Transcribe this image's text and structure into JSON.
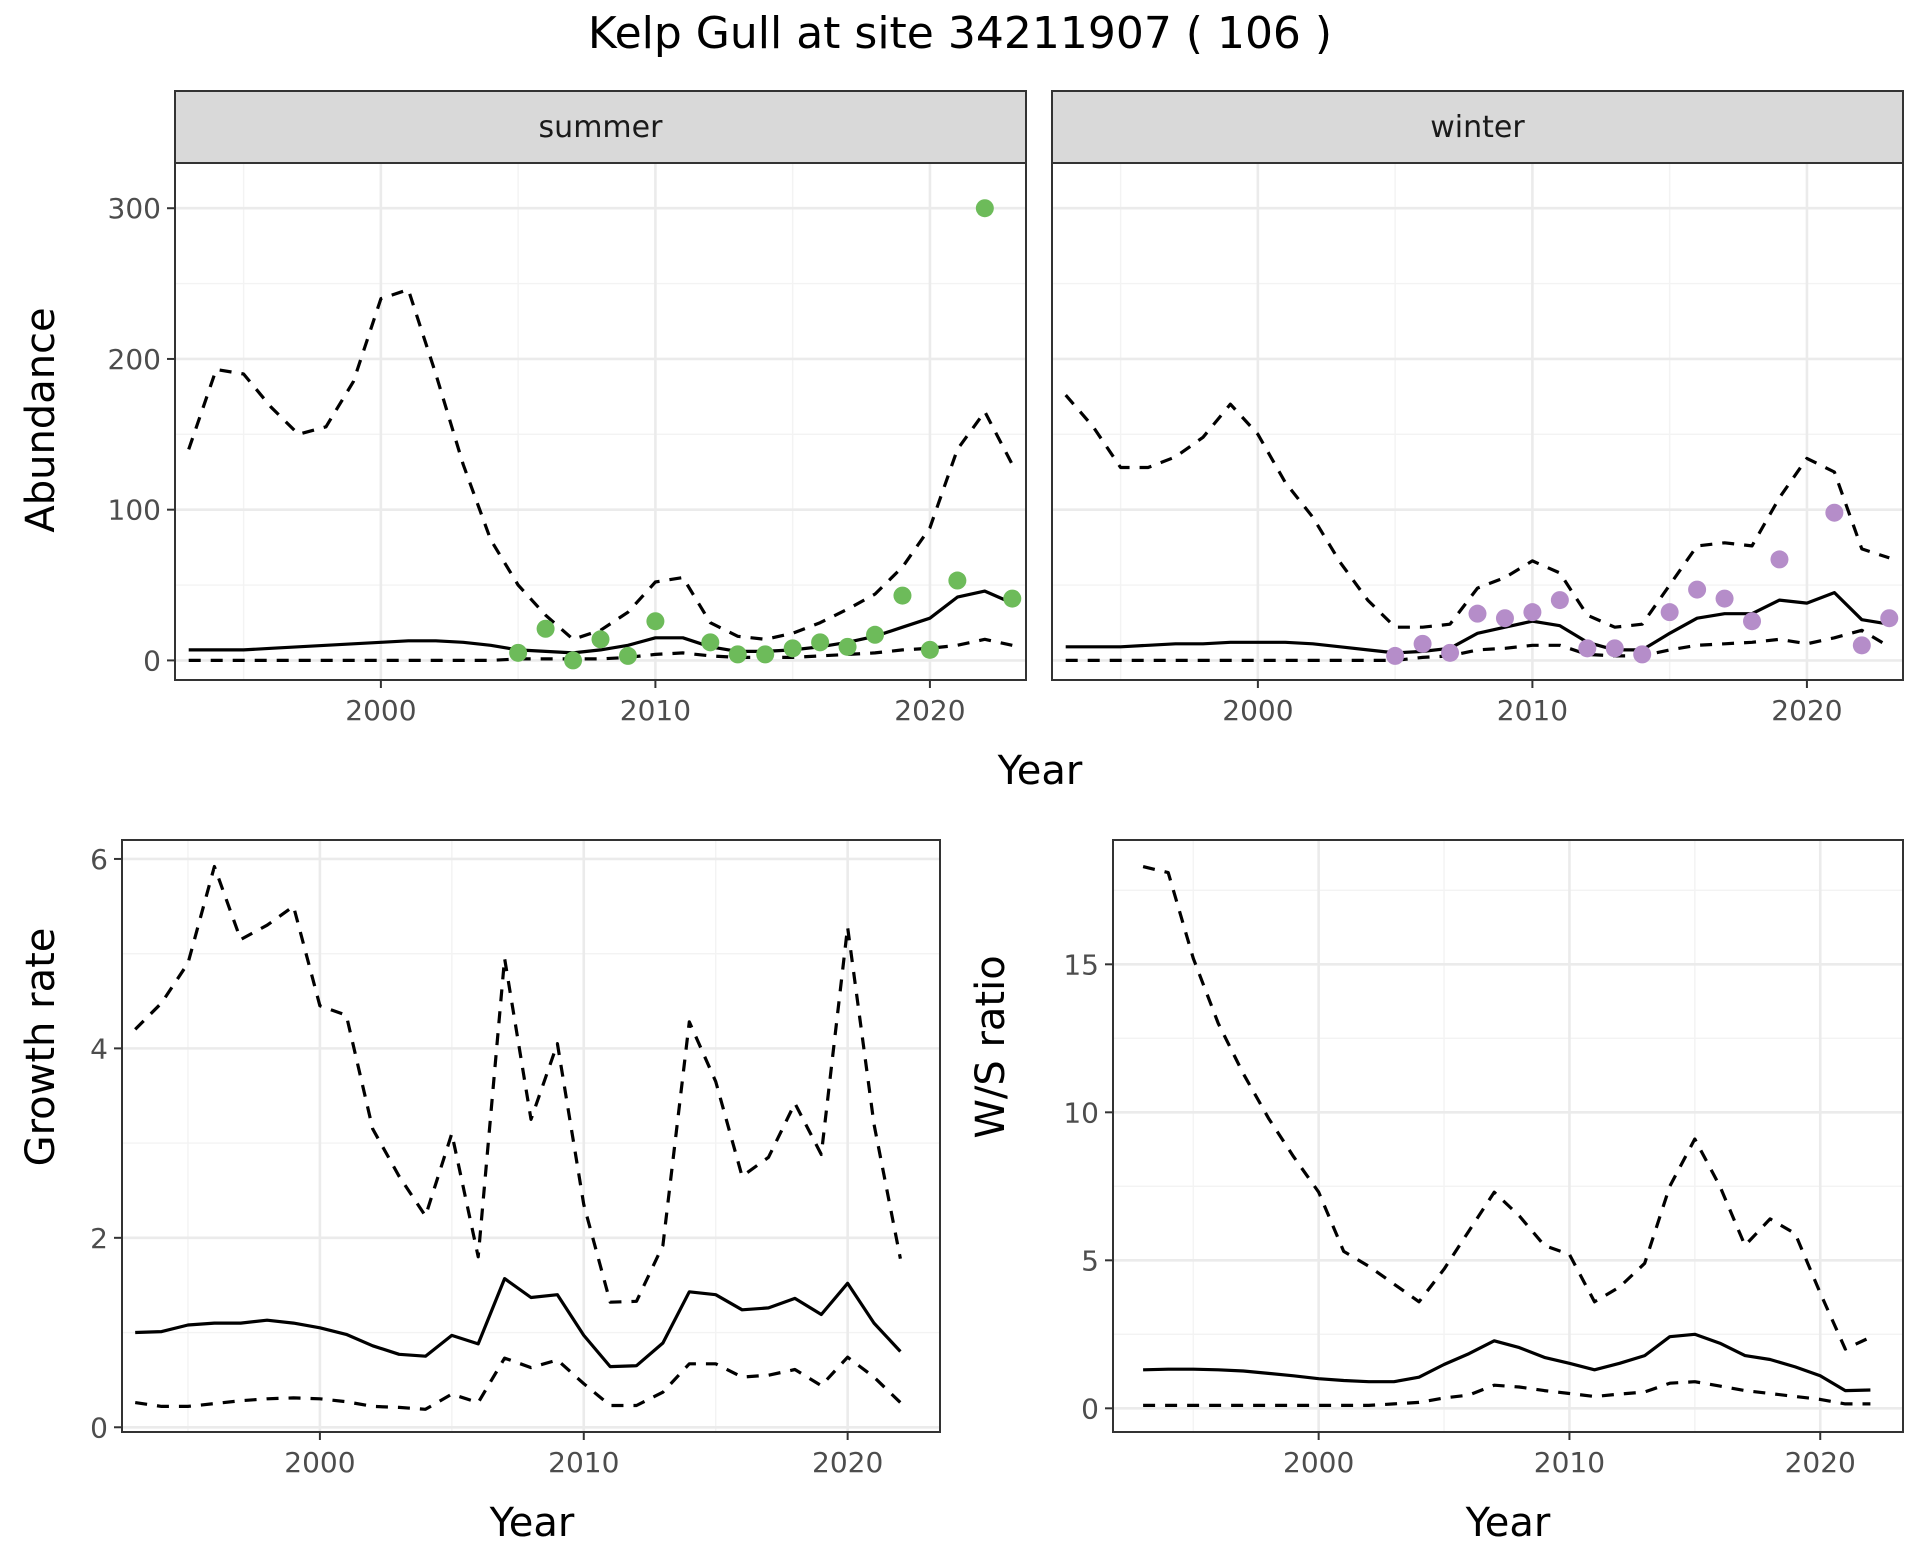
{
  "title": "Kelp Gull at site 34211907 ( 106 )",
  "colors": {
    "summer_points": "#6dbb5a",
    "winter_points": "#b58dc9",
    "strip_fill": "#d9d9d9"
  },
  "chart_data": [
    {
      "type": "line",
      "name": "abundance",
      "xlabel": "Year",
      "ylabel": "Abundance",
      "xlim": [
        1992.5,
        2023.5
      ],
      "ylim": [
        -13,
        330
      ],
      "x_ticks": [
        2000,
        2010,
        2020
      ],
      "y_ticks": [
        0,
        100,
        200,
        300
      ],
      "grid": true,
      "legend": "none",
      "panels": [
        {
          "strip": "summer",
          "x": [
            1993,
            1994,
            1995,
            1996,
            1997,
            1998,
            1999,
            2000,
            2001,
            2002,
            2003,
            2004,
            2005,
            2006,
            2007,
            2008,
            2009,
            2010,
            2011,
            2012,
            2013,
            2014,
            2015,
            2016,
            2017,
            2018,
            2019,
            2020,
            2021,
            2022,
            2023
          ],
          "estimate": [
            7,
            7,
            7,
            8,
            9,
            10,
            11,
            12,
            13,
            13,
            12,
            10,
            7,
            6,
            5,
            7,
            10,
            15,
            15,
            9,
            6,
            6,
            7,
            9,
            12,
            16,
            22,
            28,
            42,
            46,
            38
          ],
          "upper": [
            140,
            193,
            190,
            168,
            150,
            155,
            185,
            240,
            246,
            190,
            130,
            80,
            50,
            30,
            14,
            20,
            32,
            52,
            55,
            25,
            16,
            14,
            18,
            25,
            34,
            44,
            62,
            88,
            140,
            165,
            130
          ],
          "lower": [
            0,
            0,
            0,
            0,
            0,
            0,
            0,
            0,
            0,
            0,
            0,
            0,
            1,
            1,
            1,
            1,
            2,
            4,
            5,
            3,
            2,
            2,
            2,
            3,
            4,
            5,
            7,
            8,
            10,
            14,
            10
          ],
          "points": {
            "x": [
              2005,
              2006,
              2007,
              2008,
              2009,
              2010,
              2012,
              2013,
              2014,
              2015,
              2016,
              2017,
              2018,
              2019,
              2020,
              2021,
              2022,
              2023
            ],
            "y": [
              5,
              21,
              0,
              14,
              3,
              26,
              12,
              4,
              4,
              8,
              12,
              9,
              17,
              43,
              7,
              53,
              300,
              41
            ]
          }
        },
        {
          "strip": "winter",
          "x": [
            1993,
            1994,
            1995,
            1996,
            1997,
            1998,
            1999,
            2000,
            2001,
            2002,
            2003,
            2004,
            2005,
            2006,
            2007,
            2008,
            2009,
            2010,
            2011,
            2012,
            2013,
            2014,
            2015,
            2016,
            2017,
            2018,
            2019,
            2020,
            2021,
            2022,
            2023
          ],
          "estimate": [
            9,
            9,
            9,
            10,
            11,
            11,
            12,
            12,
            12,
            11,
            9,
            7,
            5,
            6,
            8,
            18,
            22,
            26,
            23,
            12,
            7,
            7,
            18,
            28,
            31,
            31,
            40,
            38,
            45,
            27,
            24
          ],
          "upper": [
            176,
            155,
            128,
            128,
            135,
            148,
            170,
            150,
            118,
            95,
            65,
            40,
            22,
            22,
            24,
            48,
            55,
            66,
            58,
            30,
            22,
            24,
            50,
            76,
            78,
            76,
            108,
            134,
            125,
            74,
            68
          ],
          "lower": [
            0,
            0,
            0,
            0,
            0,
            0,
            0,
            0,
            0,
            0,
            0,
            0,
            0,
            2,
            3,
            7,
            8,
            10,
            10,
            4,
            3,
            3,
            7,
            10,
            11,
            12,
            14,
            11,
            15,
            20,
            9
          ],
          "points": {
            "x": [
              2005,
              2006,
              2007,
              2008,
              2009,
              2010,
              2011,
              2012,
              2013,
              2014,
              2015,
              2016,
              2017,
              2018,
              2019,
              2021,
              2022,
              2023
            ],
            "y": [
              3,
              11,
              5,
              31,
              28,
              32,
              40,
              8,
              8,
              4,
              32,
              47,
              41,
              26,
              67,
              98,
              10,
              28
            ]
          }
        }
      ]
    },
    {
      "type": "line",
      "name": "growth_rate",
      "xlabel": "Year",
      "ylabel": "Growth rate",
      "xlim": [
        1992.5,
        2023.5
      ],
      "ylim": [
        -0.05,
        6.2
      ],
      "x_ticks": [
        2000,
        2010,
        2020
      ],
      "y_ticks": [
        0,
        2,
        4,
        6
      ],
      "grid": true,
      "legend": "none",
      "x": [
        1993,
        1994,
        1995,
        1996,
        1997,
        1998,
        1999,
        2000,
        2001,
        2002,
        2003,
        2004,
        2005,
        2006,
        2007,
        2008,
        2009,
        2010,
        2011,
        2012,
        2013,
        2014,
        2015,
        2016,
        2017,
        2018,
        2019,
        2020,
        2021,
        2022
      ],
      "estimate": [
        1.0,
        1.01,
        1.08,
        1.1,
        1.1,
        1.13,
        1.1,
        1.05,
        0.98,
        0.86,
        0.77,
        0.75,
        0.97,
        0.88,
        1.57,
        1.37,
        1.4,
        0.97,
        0.64,
        0.65,
        0.89,
        1.43,
        1.4,
        1.24,
        1.26,
        1.36,
        1.19,
        1.52,
        1.1,
        0.8
      ],
      "upper": [
        4.2,
        4.48,
        4.9,
        5.92,
        5.15,
        5.3,
        5.5,
        4.45,
        4.35,
        3.15,
        2.65,
        2.23,
        3.1,
        1.8,
        4.95,
        3.25,
        4.05,
        2.35,
        1.32,
        1.33,
        1.92,
        4.28,
        3.65,
        2.65,
        2.85,
        3.42,
        2.88,
        5.28,
        3.2,
        1.78
      ],
      "lower": [
        0.26,
        0.22,
        0.22,
        0.25,
        0.28,
        0.3,
        0.31,
        0.3,
        0.27,
        0.22,
        0.21,
        0.19,
        0.35,
        0.26,
        0.73,
        0.63,
        0.71,
        0.46,
        0.23,
        0.23,
        0.37,
        0.67,
        0.67,
        0.53,
        0.55,
        0.61,
        0.44,
        0.74,
        0.53,
        0.26
      ]
    },
    {
      "type": "line",
      "name": "ws_ratio",
      "xlabel": "Year",
      "ylabel": "W/S ratio",
      "xlim": [
        1991.8,
        2023.3
      ],
      "ylim": [
        -0.8,
        19.2
      ],
      "x_ticks": [
        2000,
        2010,
        2020
      ],
      "y_ticks": [
        0,
        5,
        10,
        15
      ],
      "grid": true,
      "legend": "none",
      "x": [
        1993,
        1994,
        1995,
        1996,
        1997,
        1998,
        1999,
        2000,
        2001,
        2002,
        2003,
        2004,
        2005,
        2006,
        2007,
        2008,
        2009,
        2010,
        2011,
        2012,
        2013,
        2014,
        2015,
        2016,
        2017,
        2018,
        2019,
        2020,
        2021,
        2022
      ],
      "estimate": [
        1.3,
        1.32,
        1.32,
        1.3,
        1.26,
        1.18,
        1.1,
        1.0,
        0.94,
        0.9,
        0.9,
        1.05,
        1.48,
        1.85,
        2.28,
        2.05,
        1.72,
        1.52,
        1.3,
        1.52,
        1.78,
        2.42,
        2.5,
        2.2,
        1.78,
        1.65,
        1.4,
        1.1,
        0.6,
        0.62
      ],
      "upper": [
        18.3,
        18.1,
        15.2,
        13.0,
        11.3,
        9.8,
        8.5,
        7.3,
        5.3,
        4.8,
        4.2,
        3.6,
        4.7,
        6.0,
        7.3,
        6.5,
        5.5,
        5.2,
        3.6,
        4.1,
        4.9,
        7.5,
        9.1,
        7.5,
        5.5,
        6.4,
        5.9,
        3.9,
        2.0,
        2.4
      ],
      "lower": [
        0.1,
        0.1,
        0.1,
        0.1,
        0.1,
        0.1,
        0.1,
        0.1,
        0.1,
        0.1,
        0.15,
        0.2,
        0.35,
        0.45,
        0.78,
        0.72,
        0.6,
        0.5,
        0.4,
        0.48,
        0.55,
        0.85,
        0.9,
        0.75,
        0.6,
        0.5,
        0.4,
        0.3,
        0.15,
        0.15
      ]
    }
  ]
}
